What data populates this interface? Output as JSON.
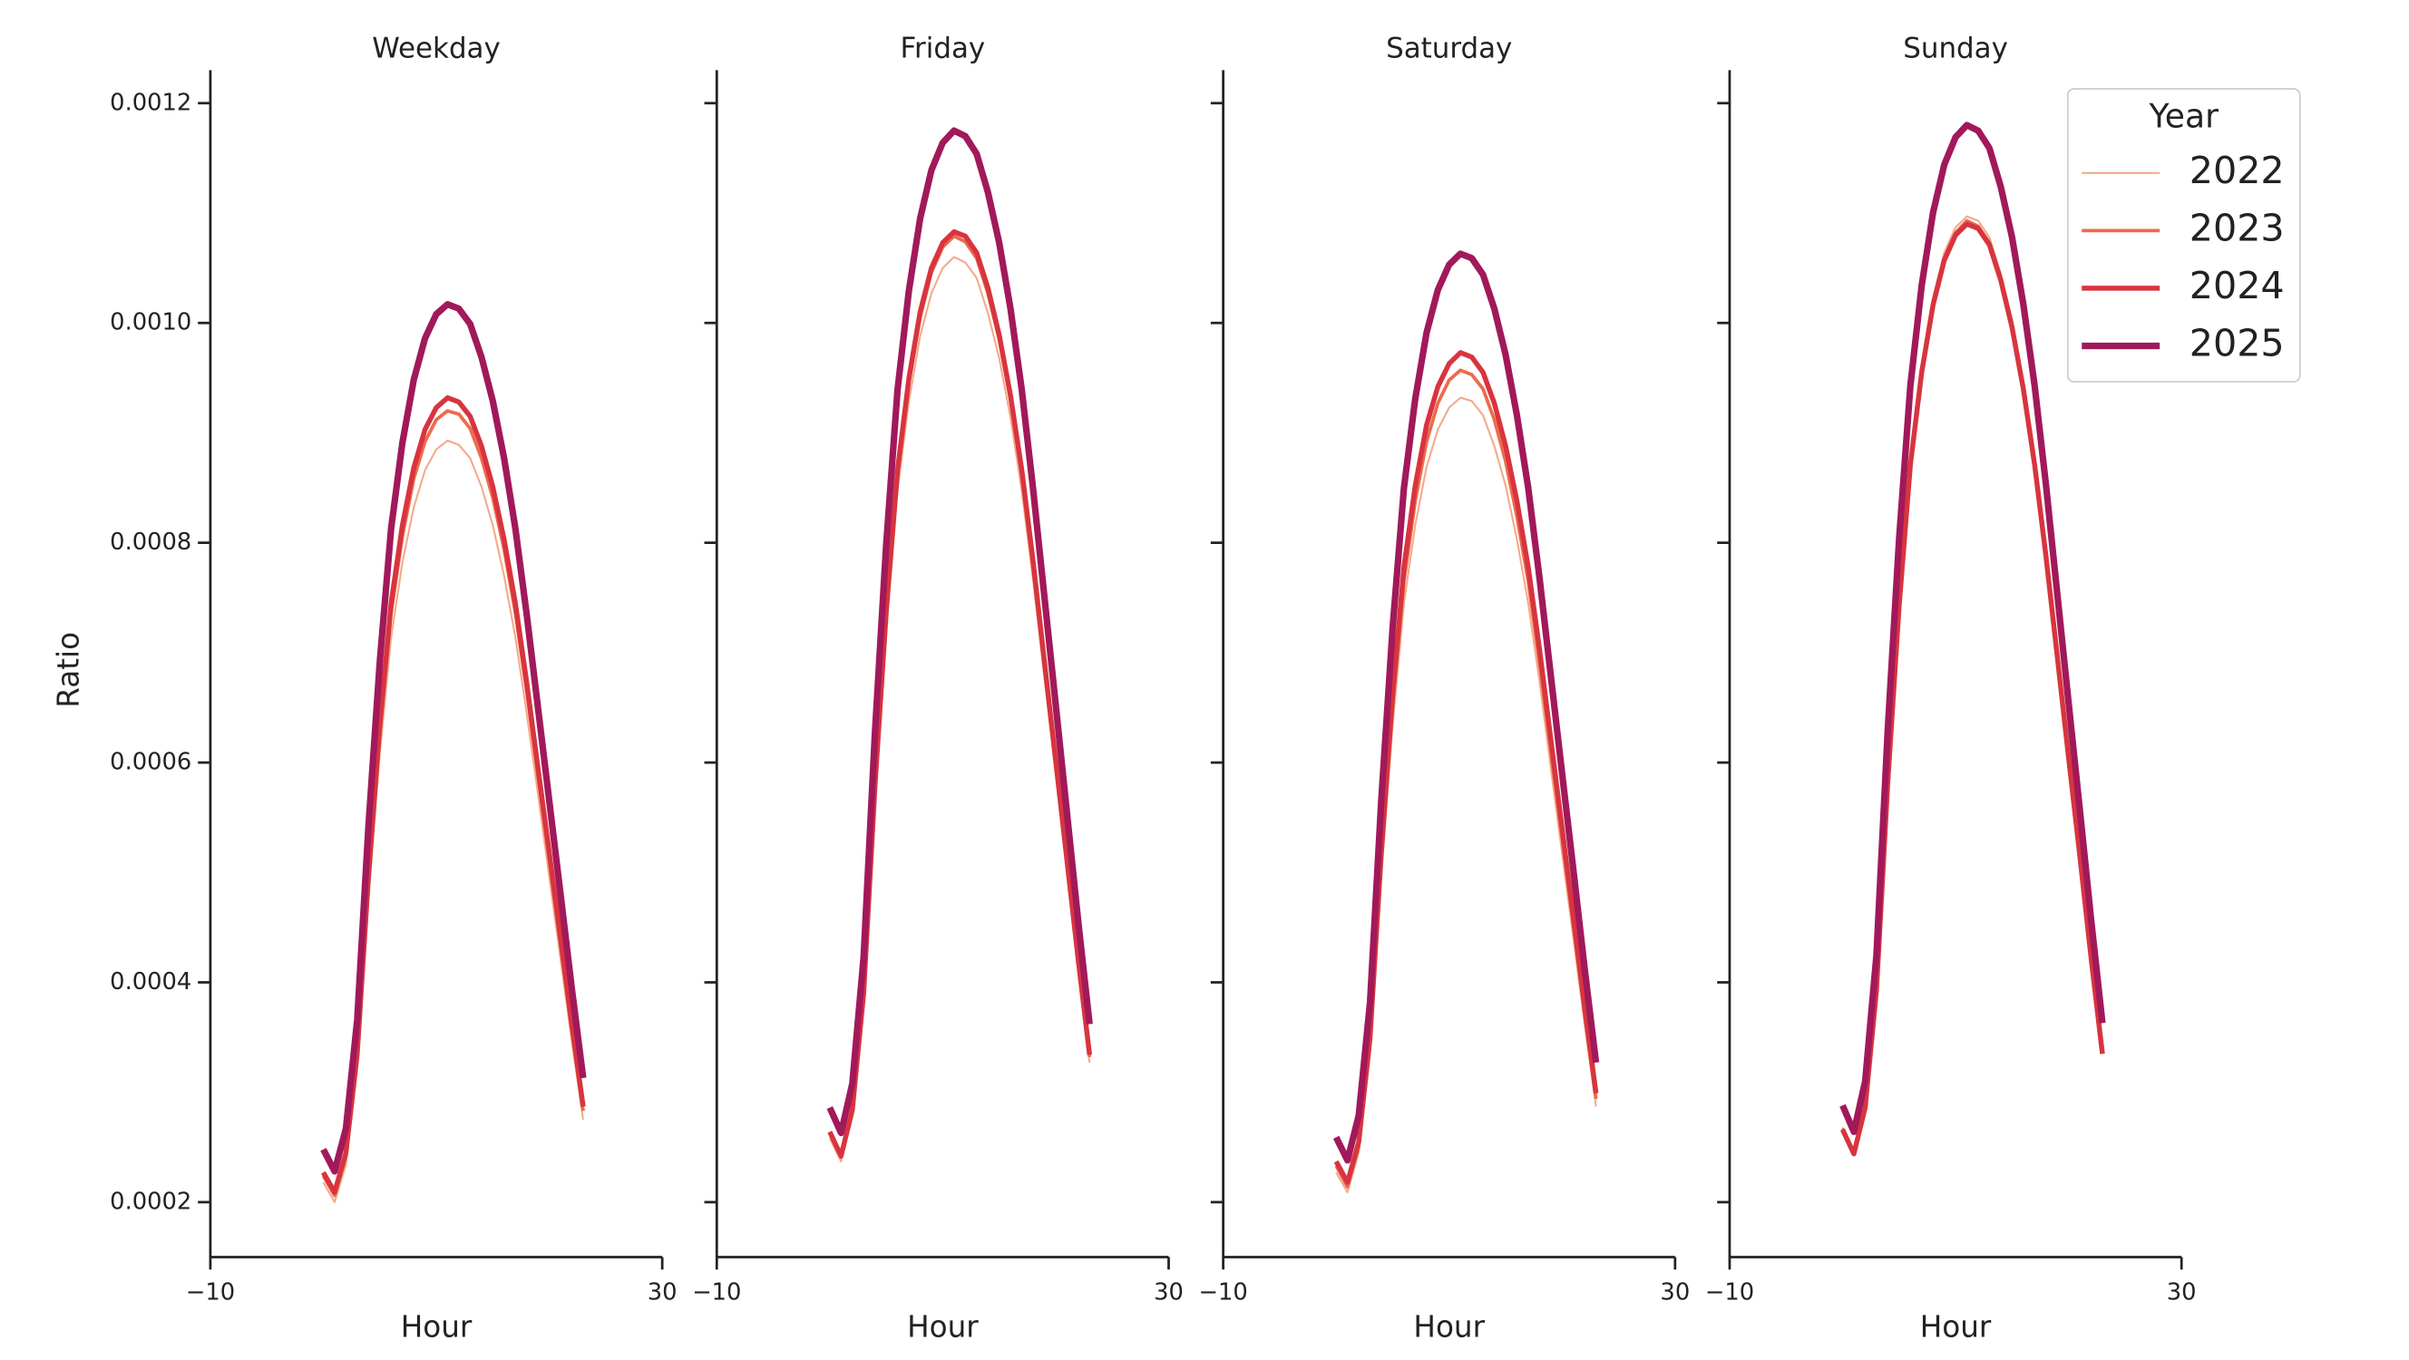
{
  "chart_data": [
    {
      "type": "line",
      "title": "Weekday",
      "x_label": "Hour",
      "y_label": "Ratio",
      "x": [
        0,
        1,
        2,
        3,
        4,
        5,
        6,
        7,
        8,
        9,
        10,
        11,
        12,
        13,
        14,
        15,
        16,
        17,
        18,
        19,
        20,
        21,
        22,
        23
      ],
      "xlim": [
        -10,
        30
      ],
      "xticks": [
        {
          "value": -10,
          "label": "−10"
        },
        30
      ],
      "ylim": [
        0.00015,
        0.00123
      ],
      "yticks": [
        0.0002,
        0.0004,
        0.0006,
        0.0008,
        {
          "value": 0.001,
          "label": "0.0010"
        },
        0.0012
      ],
      "series": [
        {
          "name": "2022",
          "color": "#f4a98a",
          "width": 1.2,
          "values": [
            0.000218,
            0.0002,
            0.000234,
            0.000321,
            0.000477,
            0.000608,
            0.000714,
            0.000782,
            0.000832,
            0.000866,
            0.000885,
            0.000893,
            0.000889,
            0.000877,
            0.000851,
            0.000816,
            0.00077,
            0.000714,
            0.000645,
            0.000571,
            0.000496,
            0.000421,
            0.000346,
            0.000275
          ]
        },
        {
          "name": "2023",
          "color": "#ee6a4d",
          "width": 2.2,
          "values": [
            0.000224,
            0.000206,
            0.000242,
            0.000331,
            0.000491,
            0.000626,
            0.000736,
            0.000806,
            0.000858,
            0.000892,
            0.000912,
            0.00092,
            0.000917,
            0.000904,
            0.000877,
            0.000841,
            0.000794,
            0.000736,
            0.000665,
            0.000588,
            0.000511,
            0.000434,
            0.000357,
            0.000283
          ]
        },
        {
          "name": "2024",
          "color": "#d8343f",
          "width": 3.2,
          "values": [
            0.000227,
            0.000209,
            0.000245,
            0.000335,
            0.000497,
            0.000634,
            0.000745,
            0.000816,
            0.000868,
            0.000903,
            0.000923,
            0.000932,
            0.000928,
            0.000915,
            0.000888,
            0.000851,
            0.000803,
            0.000745,
            0.000673,
            0.000595,
            0.000518,
            0.00044,
            0.000361,
            0.000287
          ]
        },
        {
          "name": "2025",
          "color": "#a1195a",
          "width": 4.2,
          "values": [
            0.000248,
            0.000228,
            0.000267,
            0.000366,
            0.000543,
            0.000692,
            0.000813,
            0.000891,
            0.000948,
            0.000986,
            0.001008,
            0.001017,
            0.001013,
            0.000999,
            0.000969,
            0.000929,
            0.000877,
            0.000813,
            0.000735,
            0.00065,
            0.000565,
            0.00048,
            0.000394,
            0.000313
          ]
        }
      ]
    },
    {
      "type": "line",
      "title": "Friday",
      "x_label": "Hour",
      "x": [
        0,
        1,
        2,
        3,
        4,
        5,
        6,
        7,
        8,
        9,
        10,
        11,
        12,
        13,
        14,
        15,
        16,
        17,
        18,
        19,
        20,
        21,
        22,
        23
      ],
      "xlim": [
        -10,
        30
      ],
      "xticks": [
        {
          "value": -10,
          "label": "−10"
        },
        30
      ],
      "series": [
        {
          "name": "2022",
          "color": "#f4a98a",
          "width": 1.2,
          "values": [
            0.000258,
            0.000237,
            0.000278,
            0.000382,
            0.000566,
            0.000721,
            0.000847,
            0.000928,
            0.000988,
            0.001027,
            0.00105,
            0.00106,
            0.001055,
            0.001041,
            0.001009,
            0.000968,
            0.000914,
            0.000847,
            0.000766,
            0.000677,
            0.000589,
            0.0005,
            0.00041,
            0.000327
          ]
        },
        {
          "name": "2023",
          "color": "#ee6a4d",
          "width": 2.2,
          "values": [
            0.000263,
            0.000241,
            0.000283,
            0.000388,
            0.000576,
            0.000733,
            0.000862,
            0.000945,
            0.001005,
            0.001046,
            0.001069,
            0.001079,
            0.001074,
            0.001059,
            0.001027,
            0.000985,
            0.00093,
            0.000862,
            0.000779,
            0.000689,
            0.000599,
            0.000509,
            0.000418,
            0.000332
          ]
        },
        {
          "name": "2024",
          "color": "#d8343f",
          "width": 3.2,
          "values": [
            0.000264,
            0.000242,
            0.000284,
            0.00039,
            0.000578,
            0.000737,
            0.000866,
            0.000949,
            0.00101,
            0.00105,
            0.001073,
            0.001083,
            0.001079,
            0.001064,
            0.001032,
            0.000989,
            0.000934,
            0.000866,
            0.000783,
            0.000692,
            0.000602,
            0.000511,
            0.00042,
            0.000334
          ]
        },
        {
          "name": "2025",
          "color": "#a1195a",
          "width": 4.2,
          "values": [
            0.000286,
            0.000263,
            0.000308,
            0.000423,
            0.000627,
            0.000799,
            0.000939,
            0.001029,
            0.001095,
            0.001139,
            0.001164,
            0.001175,
            0.00117,
            0.001154,
            0.001119,
            0.001073,
            0.001013,
            0.000939,
            0.000849,
            0.000751,
            0.000653,
            0.000554,
            0.000455,
            0.000362
          ]
        }
      ]
    },
    {
      "type": "line",
      "title": "Saturday",
      "x_label": "Hour",
      "x": [
        0,
        1,
        2,
        3,
        4,
        5,
        6,
        7,
        8,
        9,
        10,
        11,
        12,
        13,
        14,
        15,
        16,
        17,
        18,
        19,
        20,
        21,
        22,
        23
      ],
      "xlim": [
        -10,
        30
      ],
      "xticks": [
        {
          "value": -10,
          "label": "−10"
        },
        30
      ],
      "series": [
        {
          "name": "2022",
          "color": "#f4a98a",
          "width": 1.2,
          "values": [
            0.000227,
            0.000209,
            0.000245,
            0.000335,
            0.000497,
            0.000634,
            0.000745,
            0.000816,
            0.000869,
            0.000903,
            0.000923,
            0.000932,
            0.000929,
            0.000916,
            0.000888,
            0.000852,
            0.000803,
            0.000745,
            0.000674,
            0.000595,
            0.000517,
            0.00044,
            0.000361,
            0.000287
          ]
        },
        {
          "name": "2023",
          "color": "#ee6a4d",
          "width": 2.2,
          "values": [
            0.000233,
            0.000214,
            0.000251,
            0.000344,
            0.00051,
            0.000651,
            0.000765,
            0.000838,
            0.000892,
            0.000927,
            0.000948,
            0.000957,
            0.000953,
            0.00094,
            0.000912,
            0.000874,
            0.000824,
            0.000765,
            0.000691,
            0.000611,
            0.000531,
            0.000452,
            0.000371,
            0.000294
          ]
        },
        {
          "name": "2024",
          "color": "#d8343f",
          "width": 3.2,
          "values": [
            0.000237,
            0.000218,
            0.000255,
            0.00035,
            0.000519,
            0.000662,
            0.000778,
            0.000852,
            0.000907,
            0.000942,
            0.000963,
            0.000973,
            0.000969,
            0.000955,
            0.000927,
            0.000888,
            0.000838,
            0.000778,
            0.000703,
            0.000621,
            0.00054,
            0.000459,
            0.000377,
            0.000299
          ]
        },
        {
          "name": "2025",
          "color": "#a1195a",
          "width": 4.2,
          "values": [
            0.000259,
            0.000238,
            0.000279,
            0.000382,
            0.000567,
            0.000723,
            0.00085,
            0.000931,
            0.000991,
            0.00103,
            0.001053,
            0.001063,
            0.001059,
            0.001044,
            0.001013,
            0.000971,
            0.000916,
            0.00085,
            0.000768,
            0.000679,
            0.00059,
            0.000502,
            0.000412,
            0.000327
          ]
        }
      ]
    },
    {
      "type": "line",
      "title": "Sunday",
      "x_label": "Hour",
      "legend_title": "Year",
      "legend": "upper right",
      "x": [
        0,
        1,
        2,
        3,
        4,
        5,
        6,
        7,
        8,
        9,
        10,
        11,
        12,
        13,
        14,
        15,
        16,
        17,
        18,
        19,
        20,
        21,
        22,
        23
      ],
      "xlim": [
        -10,
        30
      ],
      "xticks": [
        {
          "value": -10,
          "label": "−10"
        },
        30
      ],
      "series": [
        {
          "name": "2022",
          "color": "#f4a98a",
          "width": 1.2,
          "values": [
            0.000268,
            0.000246,
            0.000288,
            0.000395,
            0.000586,
            0.000747,
            0.000877,
            0.000962,
            0.001023,
            0.001064,
            0.001087,
            0.001097,
            0.001093,
            0.001078,
            0.001045,
            0.001003,
            0.000946,
            0.000877,
            0.000793,
            0.000701,
            0.000609,
            0.000518,
            0.000425,
            0.000338
          ]
        },
        {
          "name": "2023",
          "color": "#ee6a4d",
          "width": 2.2,
          "values": [
            0.000267,
            0.000244,
            0.000287,
            0.000394,
            0.000583,
            0.000744,
            0.000873,
            0.000957,
            0.001019,
            0.001059,
            0.001082,
            0.001093,
            0.001088,
            0.001073,
            0.001041,
            0.000998,
            0.000942,
            0.000873,
            0.00079,
            0.000698,
            0.000607,
            0.000516,
            0.000423,
            0.000336
          ]
        },
        {
          "name": "2024",
          "color": "#d8343f",
          "width": 3.2,
          "values": [
            0.000266,
            0.000244,
            0.000286,
            0.000393,
            0.000582,
            0.000742,
            0.000871,
            0.000955,
            0.001016,
            0.001057,
            0.00108,
            0.00109,
            0.001086,
            0.001071,
            0.001039,
            0.000996,
            0.00094,
            0.000871,
            0.000788,
            0.000697,
            0.000605,
            0.000515,
            0.000422,
            0.000335
          ]
        },
        {
          "name": "2025",
          "color": "#a1195a",
          "width": 4.2,
          "values": [
            0.000288,
            0.000264,
            0.00031,
            0.000425,
            0.00063,
            0.000803,
            0.000943,
            0.001034,
            0.0011,
            0.001144,
            0.001169,
            0.00118,
            0.001175,
            0.001159,
            0.001124,
            0.001078,
            0.001017,
            0.000943,
            0.000853,
            0.000754,
            0.000655,
            0.000557,
            0.000457,
            0.000363
          ]
        }
      ]
    }
  ]
}
